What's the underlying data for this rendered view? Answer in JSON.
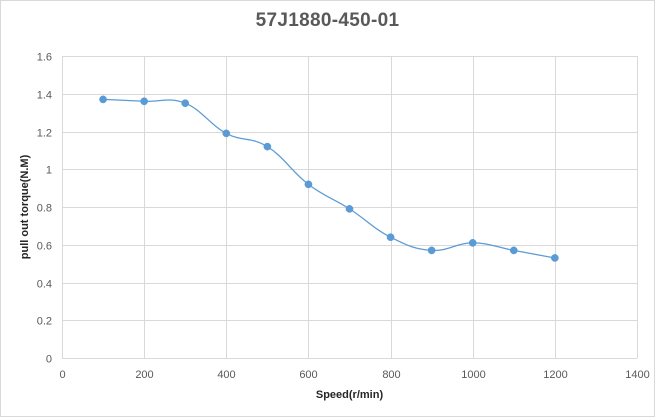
{
  "chart_data": {
    "type": "line",
    "title": "57J1880-450-01",
    "xlabel": "Speed(r/min)",
    "ylabel": "pull out torque(N.M)",
    "xlim": [
      0,
      1400
    ],
    "ylim": [
      0,
      1.6
    ],
    "x_ticks": [
      "0",
      "200",
      "400",
      "600",
      "800",
      "1000",
      "1200",
      "1400"
    ],
    "y_ticks": [
      "0",
      "0.2",
      "0.4",
      "0.6",
      "0.8",
      "1",
      "1.2",
      "1.4",
      "1.6"
    ],
    "grid": true,
    "smooth": true,
    "series": [
      {
        "color": "#5b9bd5",
        "x": [
          100,
          200,
          300,
          400,
          500,
          600,
          700,
          800,
          900,
          1000,
          1100,
          1200
        ],
        "y": [
          1.37,
          1.36,
          1.35,
          1.19,
          1.12,
          0.92,
          0.79,
          0.64,
          0.57,
          0.61,
          0.57,
          0.53
        ]
      }
    ]
  }
}
